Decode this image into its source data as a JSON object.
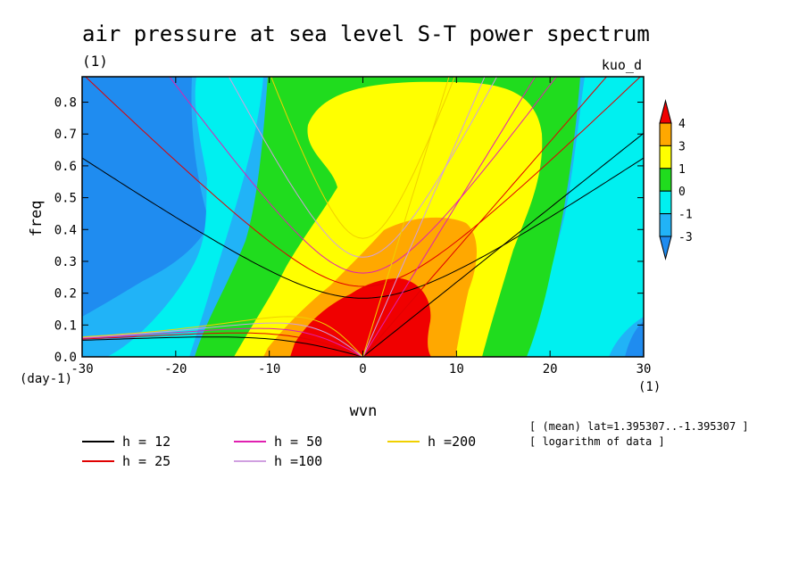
{
  "chart_data": {
    "type": "heatmap",
    "title": "air pressure at sea level S-T power spectrum",
    "subtitle": "(1)",
    "corner_label": "kuo_d",
    "xlabel": "wvn",
    "ylabel": "freq",
    "x_unit": "(1)",
    "y_unit": "(day-1)",
    "xlim": [
      -30,
      30
    ],
    "ylim": [
      0,
      0.88
    ],
    "x_ticks": [
      "-30",
      "-20",
      "-10",
      "0",
      "10",
      "20",
      "30"
    ],
    "y_ticks": [
      "0.0",
      "0.1",
      "0.2",
      "0.3",
      "0.4",
      "0.5",
      "0.6",
      "0.7",
      "0.8"
    ],
    "colorbar": {
      "levels": [
        "-3",
        "-1",
        "0",
        "1",
        "3",
        "4"
      ],
      "colors": [
        "#1f8cf0",
        "#21b3f7",
        "#00f0f0",
        "#20dc1e",
        "#ffff00",
        "#ffa800",
        "#f00000"
      ]
    },
    "dispersion_curves": [
      {
        "label": "h = 12",
        "color": "#000000"
      },
      {
        "label": "h = 25",
        "color": "#e00000"
      },
      {
        "label": "h = 50",
        "color": "#e020b0"
      },
      {
        "label": "h =100",
        "color": "#d0a0e0"
      },
      {
        "label": "h =200",
        "color": "#f0d000"
      }
    ],
    "notes": [
      "[ (mean) lat=1.395307..-1.395307 ]",
      "[ logarithm of data ]"
    ]
  }
}
